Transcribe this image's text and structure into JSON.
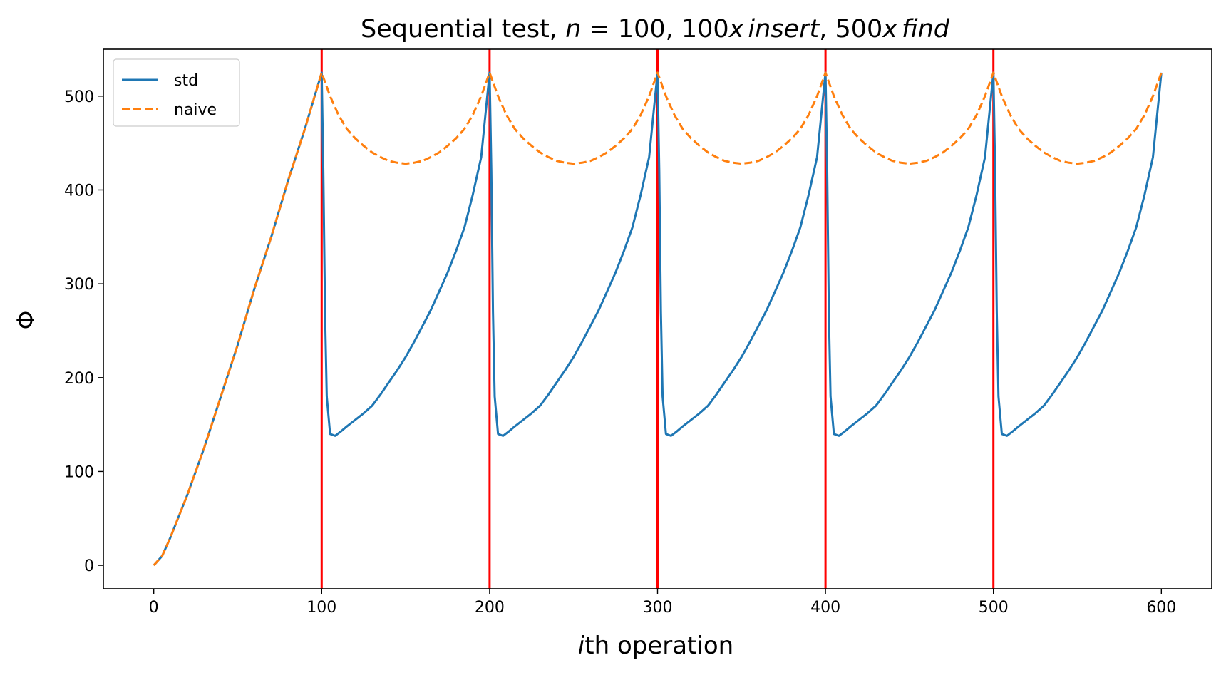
{
  "chart_data": {
    "type": "line",
    "title": {
      "prefix": "Sequential test, ",
      "var": "n",
      "eq": " = 100, 100",
      "x1": "x",
      "w1": "insert",
      "mid": ", 500",
      "x2": "x",
      "w2": "find"
    },
    "xlabel": {
      "var": "i",
      "rest": "th operation"
    },
    "ylabel": "Φ",
    "xlim": [
      -30,
      630
    ],
    "ylim": [
      -25,
      550
    ],
    "xticks": [
      0,
      100,
      200,
      300,
      400,
      500,
      600
    ],
    "yticks": [
      0,
      100,
      200,
      300,
      400,
      500
    ],
    "grid": false,
    "legend_position": "top-left",
    "vlines": {
      "x": [
        100,
        200,
        300,
        400,
        500
      ],
      "color": "#ff0000"
    },
    "series": [
      {
        "name": "std",
        "color": "#1f77b4",
        "style": "solid",
        "x": [
          0,
          5,
          10,
          20,
          30,
          40,
          50,
          60,
          70,
          80,
          90,
          100,
          101,
          102,
          103,
          105,
          108,
          111,
          115,
          120,
          125,
          130,
          135,
          140,
          145,
          150,
          155,
          160,
          165,
          170,
          175,
          180,
          185,
          190,
          195,
          200,
          201,
          202,
          203,
          205,
          208,
          211,
          215,
          220,
          225,
          230,
          235,
          240,
          245,
          250,
          255,
          260,
          265,
          270,
          275,
          280,
          285,
          290,
          295,
          300,
          301,
          302,
          303,
          305,
          308,
          311,
          315,
          320,
          325,
          330,
          335,
          340,
          345,
          350,
          355,
          360,
          365,
          370,
          375,
          380,
          385,
          390,
          395,
          400,
          401,
          402,
          403,
          405,
          408,
          411,
          415,
          420,
          425,
          430,
          435,
          440,
          445,
          450,
          455,
          460,
          465,
          470,
          475,
          480,
          485,
          490,
          495,
          500,
          501,
          502,
          503,
          505,
          508,
          511,
          515,
          520,
          525,
          530,
          535,
          540,
          545,
          550,
          555,
          560,
          565,
          570,
          575,
          580,
          585,
          590,
          595,
          600
        ],
        "y": [
          0,
          10,
          30,
          75,
          125,
          180,
          235,
          295,
          350,
          410,
          465,
          525,
          420,
          270,
          180,
          140,
          138,
          142,
          148,
          155,
          162,
          170,
          182,
          195,
          208,
          222,
          238,
          255,
          272,
          292,
          312,
          335,
          360,
          395,
          435,
          525,
          420,
          270,
          180,
          140,
          138,
          142,
          148,
          155,
          162,
          170,
          182,
          195,
          208,
          222,
          238,
          255,
          272,
          292,
          312,
          335,
          360,
          395,
          435,
          525,
          420,
          270,
          180,
          140,
          138,
          142,
          148,
          155,
          162,
          170,
          182,
          195,
          208,
          222,
          238,
          255,
          272,
          292,
          312,
          335,
          360,
          395,
          435,
          525,
          420,
          270,
          180,
          140,
          138,
          142,
          148,
          155,
          162,
          170,
          182,
          195,
          208,
          222,
          238,
          255,
          272,
          292,
          312,
          335,
          360,
          395,
          435,
          525,
          420,
          270,
          180,
          140,
          138,
          142,
          148,
          155,
          162,
          170,
          182,
          195,
          208,
          222,
          238,
          255,
          272,
          292,
          312,
          335,
          360,
          395,
          435,
          525
        ]
      },
      {
        "name": "naive",
        "color": "#ff7f0e",
        "style": "dashed",
        "x": [
          0,
          5,
          10,
          20,
          30,
          40,
          50,
          60,
          70,
          80,
          90,
          100,
          105,
          110,
          115,
          120,
          125,
          130,
          135,
          140,
          145,
          150,
          155,
          160,
          165,
          170,
          175,
          180,
          185,
          190,
          195,
          200,
          205,
          210,
          215,
          220,
          225,
          230,
          235,
          240,
          245,
          250,
          255,
          260,
          265,
          270,
          275,
          280,
          285,
          290,
          295,
          300,
          305,
          310,
          315,
          320,
          325,
          330,
          335,
          340,
          345,
          350,
          355,
          360,
          365,
          370,
          375,
          380,
          385,
          390,
          395,
          400,
          405,
          410,
          415,
          420,
          425,
          430,
          435,
          440,
          445,
          450,
          455,
          460,
          465,
          470,
          475,
          480,
          485,
          490,
          495,
          500,
          505,
          510,
          515,
          520,
          525,
          530,
          535,
          540,
          545,
          550,
          555,
          560,
          565,
          570,
          575,
          580,
          585,
          590,
          595,
          600
        ],
        "y": [
          0,
          10,
          30,
          75,
          125,
          180,
          235,
          295,
          350,
          410,
          465,
          525,
          500,
          480,
          465,
          455,
          447,
          440,
          435,
          431,
          429,
          428,
          429,
          431,
          435,
          440,
          447,
          455,
          465,
          480,
          500,
          525,
          500,
          480,
          465,
          455,
          447,
          440,
          435,
          431,
          429,
          428,
          429,
          431,
          435,
          440,
          447,
          455,
          465,
          480,
          500,
          525,
          500,
          480,
          465,
          455,
          447,
          440,
          435,
          431,
          429,
          428,
          429,
          431,
          435,
          440,
          447,
          455,
          465,
          480,
          500,
          525,
          500,
          480,
          465,
          455,
          447,
          440,
          435,
          431,
          429,
          428,
          429,
          431,
          435,
          440,
          447,
          455,
          465,
          480,
          500,
          525,
          500,
          480,
          465,
          455,
          447,
          440,
          435,
          431,
          429,
          428,
          429,
          431,
          435,
          440,
          447,
          455,
          465,
          480,
          500,
          525
        ]
      }
    ]
  }
}
